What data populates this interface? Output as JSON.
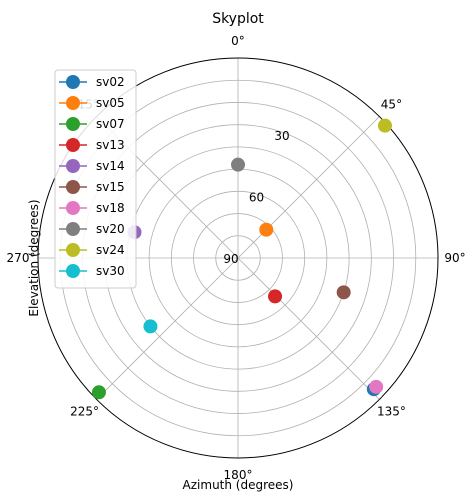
{
  "chart_data": {
    "type": "scatter",
    "projection": "polar",
    "title": "Skyplot",
    "xlabel": "Azimuth (degrees)",
    "ylabel": "Elevation (degrees)",
    "azimuth_zero": "north",
    "azimuth_direction": "clockwise",
    "radial_axis": "elevation, 90 at center to 0 at edge",
    "azimuth_tick_labels": [
      "0°",
      "45°",
      "90°",
      "135°",
      "180°",
      "225°",
      "270°",
      "315°"
    ],
    "radial_tick_labels": [
      "90",
      "60",
      "30"
    ],
    "grid": true,
    "legend_position": "upper-left",
    "series": [
      {
        "name": "sv02",
        "color": "#1f77b4",
        "azimuth": 134,
        "elevation": 5
      },
      {
        "name": "sv05",
        "color": "#ff7f0e",
        "azimuth": 45,
        "elevation": 72
      },
      {
        "name": "sv07",
        "color": "#2ca02c",
        "azimuth": 226,
        "elevation": 3
      },
      {
        "name": "sv13",
        "color": "#d62728",
        "azimuth": 136,
        "elevation": 66
      },
      {
        "name": "sv14",
        "color": "#9467bd",
        "azimuth": 284,
        "elevation": 42
      },
      {
        "name": "sv15",
        "color": "#8c564b",
        "azimuth": 108,
        "elevation": 40
      },
      {
        "name": "sv18",
        "color": "#e377c2",
        "azimuth": 133,
        "elevation": 5
      },
      {
        "name": "sv20",
        "color": "#7f7f7f",
        "azimuth": 0,
        "elevation": 48
      },
      {
        "name": "sv24",
        "color": "#bcbd22",
        "azimuth": 48,
        "elevation": 1
      },
      {
        "name": "sv30",
        "color": "#17becf",
        "azimuth": 232,
        "elevation": 40
      }
    ]
  }
}
